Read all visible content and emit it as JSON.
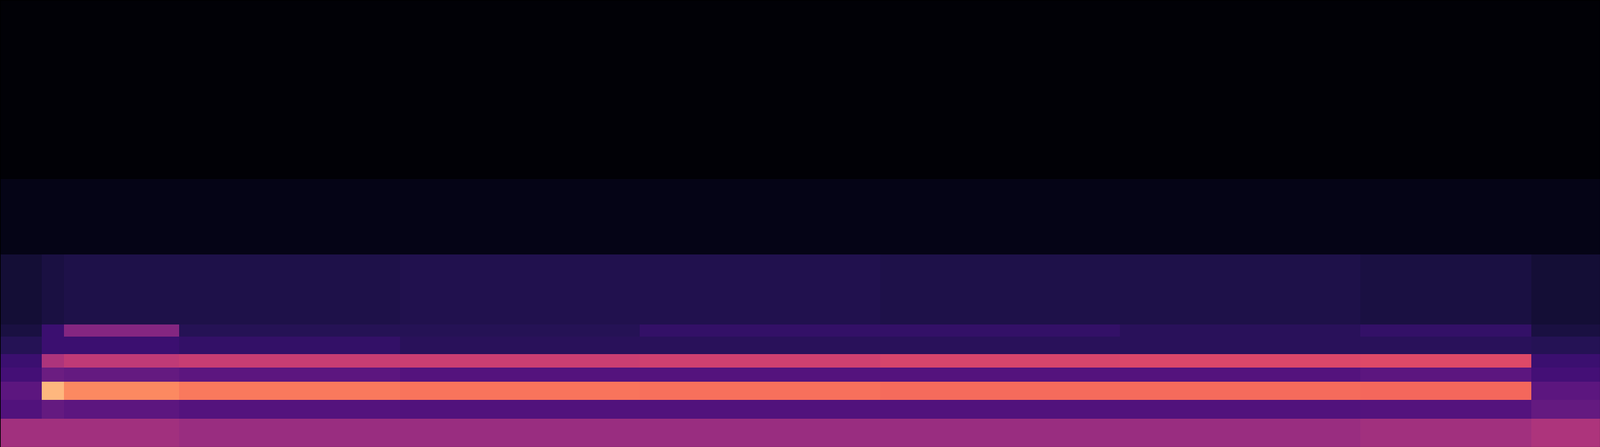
{
  "chart_data": {
    "type": "spectrogram",
    "tick_labels": false,
    "color": "magma",
    "clim": [
      -100,
      0
    ],
    "xlim": [
      0,
      100
    ],
    "ylim": [
      0,
      100
    ],
    "x_edges": [
      0,
      2.6,
      4,
      11.2,
      25,
      40,
      55,
      70,
      85,
      95.7,
      100
    ],
    "y_edges": [
      0,
      6.4,
      10.5,
      14.6,
      17.8,
      20.8,
      24.7,
      27.4,
      43,
      60,
      100
    ],
    "cells": [
      [
        -55,
        -55,
        -55,
        -57,
        -57,
        -57,
        -57,
        -57,
        -55,
        -52
      ],
      [
        -75,
        -70,
        -72,
        -74,
        -75,
        -75,
        -75,
        -75,
        -74,
        -70
      ],
      [
        -72,
        -15,
        -25,
        -28,
        -29,
        -30,
        -31,
        -31,
        -32,
        -72
      ],
      [
        -78,
        -68,
        -70,
        -72,
        -74,
        -74,
        -74,
        -74,
        -72,
        -78
      ],
      [
        -80,
        -52,
        -48,
        -46,
        -45,
        -44,
        -42,
        -41,
        -40,
        -80
      ],
      [
        -85,
        -80,
        -80,
        -82,
        -84,
        -84,
        -84,
        -84,
        -84,
        -85
      ],
      [
        -88,
        -80,
        -62,
        -85,
        -85,
        -82,
        -82,
        -84,
        -82,
        -88
      ],
      [
        -90,
        -88,
        -87,
        -87,
        -86,
        -86,
        -87,
        -87,
        -88,
        -90
      ],
      [
        -96,
        -96,
        -96,
        -96,
        -96,
        -96,
        -96,
        -96,
        -96,
        -96
      ],
      [
        -99,
        -99,
        -99,
        -99,
        -99,
        -99,
        -99,
        -99,
        -99,
        -99
      ]
    ]
  }
}
